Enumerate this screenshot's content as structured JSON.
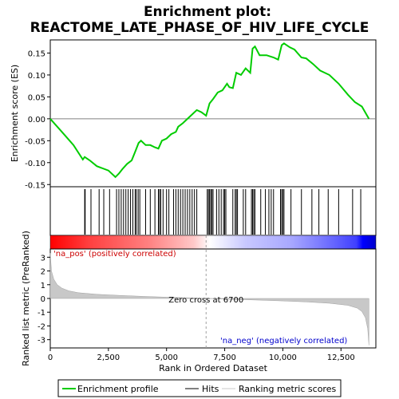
{
  "title_line1": "Enrichment plot:",
  "title_line2": "REACTOME_LATE_PHASE_OF_HIV_LIFE_CYCLE",
  "colors": {
    "profile": "#00cc00",
    "hits": "#000000",
    "metric_fill": "#c8c8c8",
    "zero_line": "#a0a0a0",
    "pos_label": "#cc0000",
    "neg_label": "#0000cc",
    "bar_red": "#ff0000",
    "bar_blue": "#0000ff"
  },
  "chart_data": {
    "type": "line",
    "title": "Enrichment plot: REACTOME_LATE_PHASE_OF_HIV_LIFE_CYCLE",
    "xlabel": "Rank in Ordered Dataset",
    "xlim": [
      0,
      14000
    ],
    "x_ticks": [
      0,
      2500,
      5000,
      7500,
      10000,
      12500
    ],
    "x_tick_labels": [
      "0",
      "2,500",
      "5,000",
      "7,500",
      "10,000",
      "12,500"
    ],
    "n_genes": 13700,
    "zero_cross": 6700,
    "zero_cross_label": "Zero cross at 6700",
    "pos_label": "'na_pos' (positively correlated)",
    "neg_label": "'na_neg' (negatively correlated)",
    "legend": [
      "Enrichment profile",
      "Hits",
      "Ranking metric scores"
    ],
    "es_panel": {
      "ylabel": "Enrichment score (ES)",
      "ylim": [
        -0.155,
        0.18
      ],
      "y_ticks": [
        -0.15,
        -0.1,
        -0.05,
        0.0,
        0.05,
        0.1,
        0.15
      ],
      "y_tick_labels": [
        "-0.15",
        "-0.10",
        "-0.05",
        "0.00",
        "0.05",
        "0.10",
        "0.15"
      ],
      "profile": [
        [
          0,
          0.0
        ],
        [
          500,
          -0.03
        ],
        [
          1000,
          -0.06
        ],
        [
          1400,
          -0.093
        ],
        [
          1480,
          -0.087
        ],
        [
          1700,
          -0.095
        ],
        [
          2000,
          -0.108
        ],
        [
          2200,
          -0.112
        ],
        [
          2500,
          -0.118
        ],
        [
          2800,
          -0.133
        ],
        [
          2950,
          -0.125
        ],
        [
          3100,
          -0.115
        ],
        [
          3300,
          -0.103
        ],
        [
          3500,
          -0.095
        ],
        [
          3650,
          -0.075
        ],
        [
          3800,
          -0.055
        ],
        [
          3900,
          -0.05
        ],
        [
          4100,
          -0.06
        ],
        [
          4300,
          -0.06
        ],
        [
          4500,
          -0.065
        ],
        [
          4650,
          -0.068
        ],
        [
          4800,
          -0.05
        ],
        [
          5000,
          -0.045
        ],
        [
          5200,
          -0.035
        ],
        [
          5400,
          -0.03
        ],
        [
          5500,
          -0.018
        ],
        [
          5700,
          -0.01
        ],
        [
          5900,
          0.0
        ],
        [
          6100,
          0.01
        ],
        [
          6300,
          0.02
        ],
        [
          6500,
          0.015
        ],
        [
          6700,
          0.007
        ],
        [
          6850,
          0.035
        ],
        [
          7000,
          0.045
        ],
        [
          7200,
          0.06
        ],
        [
          7400,
          0.065
        ],
        [
          7600,
          0.08
        ],
        [
          7700,
          0.072
        ],
        [
          7850,
          0.07
        ],
        [
          8000,
          0.105
        ],
        [
          8200,
          0.1
        ],
        [
          8400,
          0.115
        ],
        [
          8600,
          0.105
        ],
        [
          8700,
          0.16
        ],
        [
          8800,
          0.165
        ],
        [
          9000,
          0.145
        ],
        [
          9300,
          0.145
        ],
        [
          9600,
          0.14
        ],
        [
          9800,
          0.135
        ],
        [
          9950,
          0.168
        ],
        [
          10050,
          0.172
        ],
        [
          10300,
          0.163
        ],
        [
          10500,
          0.158
        ],
        [
          10800,
          0.14
        ],
        [
          11000,
          0.138
        ],
        [
          11300,
          0.125
        ],
        [
          11600,
          0.11
        ],
        [
          12000,
          0.1
        ],
        [
          12400,
          0.08
        ],
        [
          12800,
          0.055
        ],
        [
          13100,
          0.038
        ],
        [
          13400,
          0.028
        ],
        [
          13700,
          0.0
        ]
      ],
      "hits": [
        1480,
        1500,
        1750,
        2100,
        2300,
        2550,
        2850,
        2950,
        3050,
        3150,
        3250,
        3350,
        3450,
        3550,
        3650,
        3700,
        3780,
        3850,
        4100,
        4300,
        4500,
        4650,
        4700,
        4750,
        4850,
        5000,
        5100,
        5300,
        5400,
        5500,
        5600,
        5700,
        5800,
        5900,
        6000,
        6100,
        6200,
        6300,
        6750,
        6800,
        6850,
        6900,
        6950,
        7000,
        7150,
        7250,
        7350,
        7450,
        7500,
        7550,
        7850,
        7950,
        8000,
        8050,
        8300,
        8400,
        8650,
        8700,
        8750,
        8800,
        9050,
        9250,
        9400,
        9500,
        9600,
        9900,
        9950,
        10000,
        10050,
        10350,
        10800,
        11250,
        11550,
        11950,
        12400,
        13000,
        13350
      ]
    },
    "metric_panel": {
      "ylabel": "Ranked list metric (PreRanked)",
      "ylim": [
        -3.6,
        3.6
      ],
      "y_ticks": [
        3,
        2,
        1,
        0,
        -1,
        -2,
        -3
      ],
      "y_tick_labels": [
        "3",
        "2",
        "1",
        "0",
        "-1",
        "-2",
        "-3"
      ],
      "metric": [
        [
          0,
          3.3
        ],
        [
          50,
          2.0
        ],
        [
          150,
          1.4
        ],
        [
          300,
          1.0
        ],
        [
          500,
          0.75
        ],
        [
          800,
          0.55
        ],
        [
          1200,
          0.42
        ],
        [
          2000,
          0.3
        ],
        [
          3000,
          0.22
        ],
        [
          4000,
          0.15
        ],
        [
          5000,
          0.09
        ],
        [
          6000,
          0.04
        ],
        [
          6700,
          0.0
        ],
        [
          8000,
          -0.07
        ],
        [
          9000,
          -0.12
        ],
        [
          10000,
          -0.18
        ],
        [
          11000,
          -0.25
        ],
        [
          12000,
          -0.35
        ],
        [
          12800,
          -0.5
        ],
        [
          13200,
          -0.7
        ],
        [
          13400,
          -0.95
        ],
        [
          13550,
          -1.4
        ],
        [
          13650,
          -2.2
        ],
        [
          13700,
          -3.4
        ]
      ]
    },
    "color_bar": {
      "stops": [
        {
          "pos": 0.0,
          "color": "#ff0000"
        },
        {
          "pos": 0.12,
          "color": "#ff4040"
        },
        {
          "pos": 0.3,
          "color": "#ff8080"
        },
        {
          "pos": 0.44,
          "color": "#ffc8c8"
        },
        {
          "pos": 0.49,
          "color": "#ffffff"
        },
        {
          "pos": 0.6,
          "color": "#c8c8ff"
        },
        {
          "pos": 0.74,
          "color": "#a8a8ff"
        },
        {
          "pos": 0.82,
          "color": "#8080ff"
        },
        {
          "pos": 0.94,
          "color": "#4040ff"
        },
        {
          "pos": 0.96,
          "color": "#0000ff"
        },
        {
          "pos": 1.0,
          "color": "#0000cc"
        }
      ]
    }
  }
}
